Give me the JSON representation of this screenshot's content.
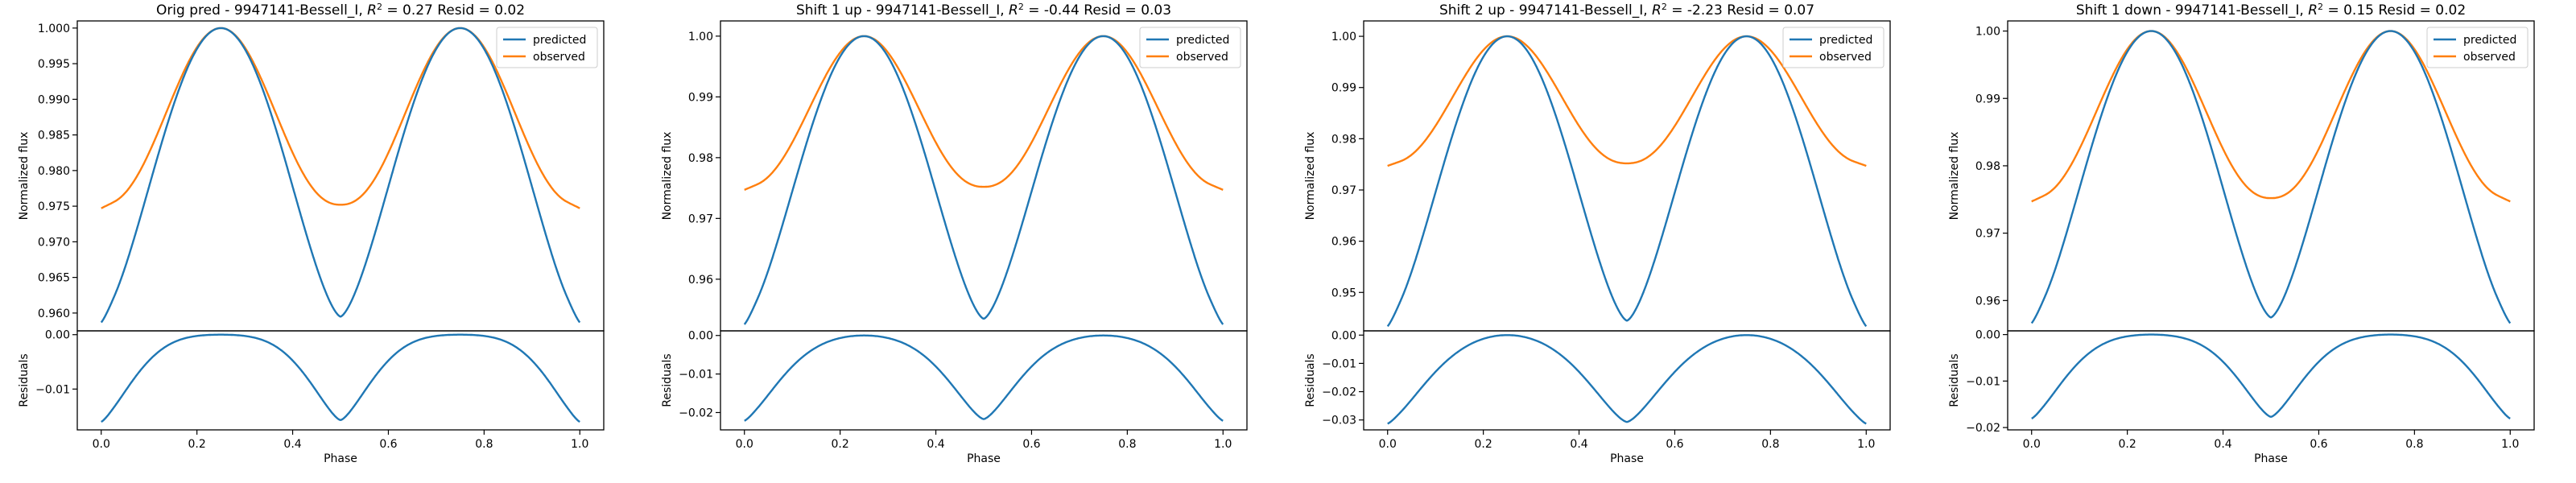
{
  "colors": {
    "predicted": "#1f77b4",
    "observed": "#ff7f0e"
  },
  "chart_data": [
    {
      "type": "line",
      "title": "Orig pred - 9947141-Bessell_I, $R^2 = 0.27$ Resid = 0.02",
      "title_parts": {
        "before": "Orig pred - 9947141-Bessell_I, ",
        "sym": "R",
        "sup": "2",
        "after": " = 0.27 Resid = 0.02"
      },
      "shape": {
        "pred_min": 0.9595,
        "obs_min": 0.9752,
        "pred_ecl": 0.9695,
        "obs_ecl": 0.9792
      },
      "top": {
        "ylabel": "Normalized flux",
        "ylim": [
          0.9575,
          1.001
        ],
        "yticks": [
          0.96,
          0.965,
          0.97,
          0.975,
          0.98,
          0.985,
          0.99,
          0.995,
          1.0
        ],
        "yticklabels": [
          "0.960",
          "0.965",
          "0.970",
          "0.975",
          "0.980",
          "0.985",
          "0.990",
          "0.995",
          "1.000"
        ],
        "legend": {
          "position": "upper right",
          "entries": [
            "predicted",
            "observed"
          ]
        }
      },
      "bottom": {
        "ylabel": "Residuals",
        "ylim": [
          -0.0175,
          0.0007
        ],
        "yticks": [
          -0.01,
          0.0
        ],
        "yticklabels": [
          "−0.01",
          "0.00"
        ]
      },
      "xlabel": "Phase",
      "xlim": [
        -0.05,
        1.05
      ],
      "xticks": [
        0.0,
        0.2,
        0.4,
        0.6,
        0.8,
        1.0
      ],
      "xticklabels": [
        "0.0",
        "0.2",
        "0.4",
        "0.6",
        "0.8",
        "1.0"
      ],
      "series": [
        {
          "name": "predicted"
        },
        {
          "name": "observed"
        }
      ]
    },
    {
      "type": "line",
      "title": "Shift 1 up - 9947141-Bessell_I, $R^2 = $-0.44 Resid = 0.03",
      "title_parts": {
        "before": "Shift 1 up - 9947141-Bessell_I, ",
        "sym": "R",
        "sup": "2",
        "after": " = -0.44 Resid = 0.03"
      },
      "shape": {
        "pred_min": 0.9535,
        "obs_min": 0.9752,
        "pred_ecl": 0.9655,
        "obs_ecl": 0.9792
      },
      "top": {
        "ylabel": "Normalized flux",
        "ylim": [
          0.9515,
          1.0025
        ],
        "yticks": [
          0.96,
          0.97,
          0.98,
          0.99,
          1.0
        ],
        "yticklabels": [
          "0.96",
          "0.97",
          "0.98",
          "0.99",
          "1.00"
        ],
        "legend": {
          "position": "upper right",
          "entries": [
            "predicted",
            "observed"
          ]
        }
      },
      "bottom": {
        "ylabel": "Residuals",
        "ylim": [
          -0.0245,
          0.0012
        ],
        "yticks": [
          -0.02,
          -0.01,
          0.0
        ],
        "yticklabels": [
          "−0.02",
          "−0.01",
          "0.00"
        ]
      },
      "xlabel": "Phase",
      "xlim": [
        -0.05,
        1.05
      ],
      "xticks": [
        0.0,
        0.2,
        0.4,
        0.6,
        0.8,
        1.0
      ],
      "xticklabels": [
        "0.0",
        "0.2",
        "0.4",
        "0.6",
        "0.8",
        "1.0"
      ],
      "series": [
        {
          "name": "predicted"
        },
        {
          "name": "observed"
        }
      ]
    },
    {
      "type": "line",
      "title": "Shift 2 up - 9947141-Bessell_I, $R^2 = $-2.23 Resid = 0.07",
      "title_parts": {
        "before": "Shift 2 up - 9947141-Bessell_I, ",
        "sym": "R",
        "sup": "2",
        "after": " = -2.23 Resid = 0.07"
      },
      "shape": {
        "pred_min": 0.9445,
        "obs_min": 0.9752,
        "pred_ecl": 0.9585,
        "obs_ecl": 0.9792
      },
      "top": {
        "ylabel": "Normalized flux",
        "ylim": [
          0.9425,
          1.003
        ],
        "yticks": [
          0.95,
          0.96,
          0.97,
          0.98,
          0.99,
          1.0
        ],
        "yticklabels": [
          "0.95",
          "0.96",
          "0.97",
          "0.98",
          "0.99",
          "1.00"
        ],
        "legend": {
          "position": "upper right",
          "entries": [
            "predicted",
            "observed"
          ]
        }
      },
      "bottom": {
        "ylabel": "Residuals",
        "ylim": [
          -0.0335,
          0.0015
        ],
        "yticks": [
          -0.03,
          -0.02,
          -0.01,
          0.0
        ],
        "yticklabels": [
          "−0.03",
          "−0.02",
          "−0.01",
          "0.00"
        ]
      },
      "xlabel": "Phase",
      "xlim": [
        -0.05,
        1.05
      ],
      "xticks": [
        0.0,
        0.2,
        0.4,
        0.6,
        0.8,
        1.0
      ],
      "xticklabels": [
        "0.0",
        "0.2",
        "0.4",
        "0.6",
        "0.8",
        "1.0"
      ],
      "series": [
        {
          "name": "predicted"
        },
        {
          "name": "observed"
        }
      ]
    },
    {
      "type": "line",
      "title": "Shift 1 down - 9947141-Bessell_I, $R^2 = 0.15$ Resid = 0.02",
      "title_parts": {
        "before": "Shift 1 down - 9947141-Bessell_I, ",
        "sym": "R",
        "sup": "2",
        "after": " = 0.15 Resid = 0.02"
      },
      "shape": {
        "pred_min": 0.9575,
        "obs_min": 0.9752,
        "pred_ecl": 0.9685,
        "obs_ecl": 0.9792
      },
      "top": {
        "ylabel": "Normalized flux",
        "ylim": [
          0.9555,
          1.0015
        ],
        "yticks": [
          0.96,
          0.97,
          0.98,
          0.99,
          1.0
        ],
        "yticklabels": [
          "0.96",
          "0.97",
          "0.98",
          "0.99",
          "1.00"
        ],
        "legend": {
          "position": "upper right",
          "entries": [
            "predicted",
            "observed"
          ]
        }
      },
      "bottom": {
        "ylabel": "Residuals",
        "ylim": [
          -0.0205,
          0.0008
        ],
        "yticks": [
          -0.02,
          -0.01,
          0.0
        ],
        "yticklabels": [
          "−0.02",
          "−0.01",
          "0.00"
        ]
      },
      "xlabel": "Phase",
      "xlim": [
        -0.05,
        1.05
      ],
      "xticks": [
        0.0,
        0.2,
        0.4,
        0.6,
        0.8,
        1.0
      ],
      "xticklabels": [
        "0.0",
        "0.2",
        "0.4",
        "0.6",
        "0.8",
        "1.0"
      ],
      "series": [
        {
          "name": "predicted"
        },
        {
          "name": "observed"
        }
      ]
    }
  ]
}
